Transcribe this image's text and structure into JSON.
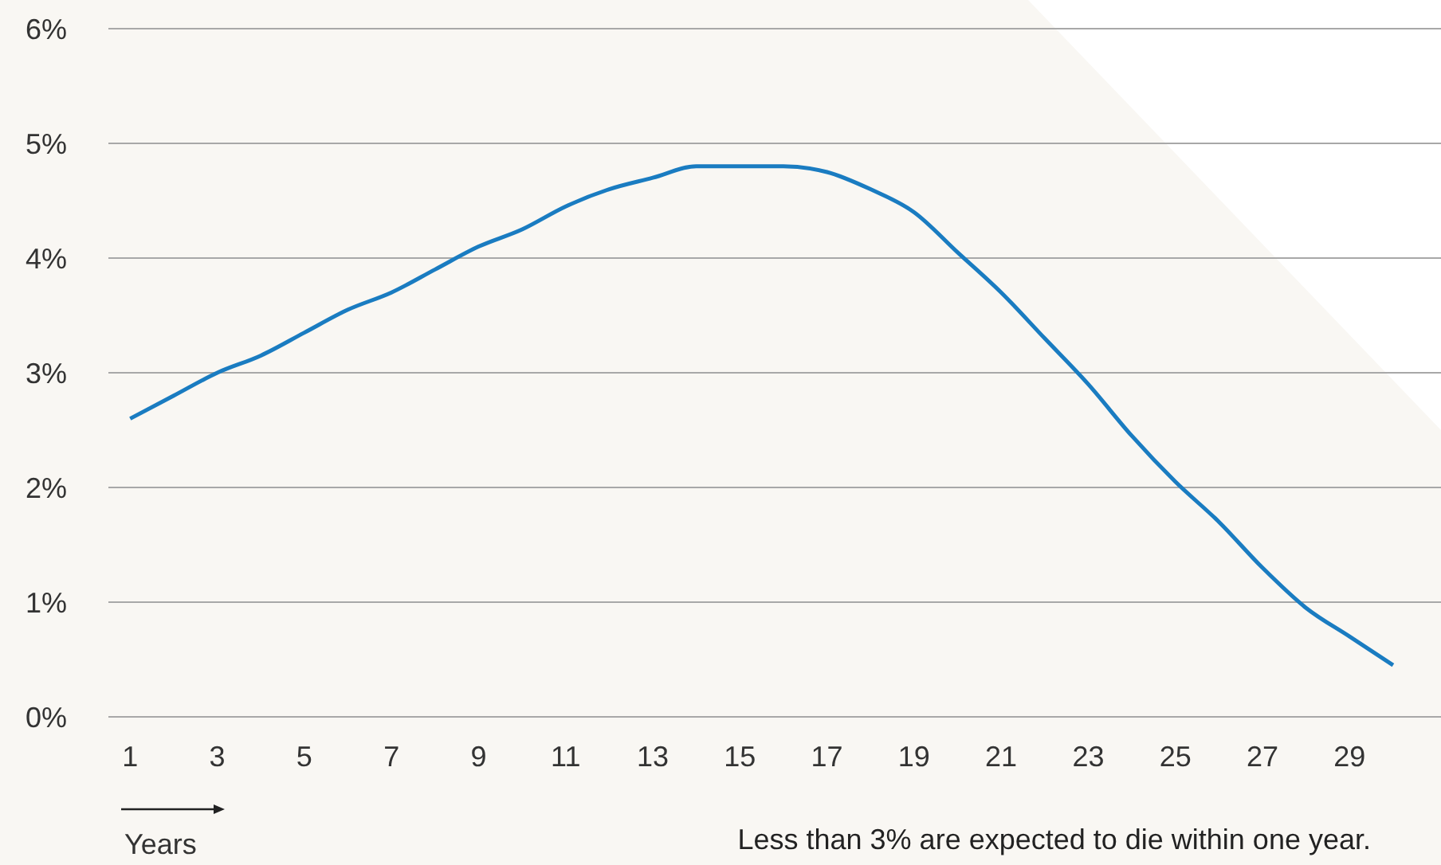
{
  "chart_data": {
    "type": "line",
    "xlabel": "Years",
    "annotations": [
      "Less than 3% are expected to die within one year."
    ],
    "x": [
      1,
      2,
      3,
      4,
      5,
      6,
      7,
      8,
      9,
      10,
      11,
      12,
      13,
      14,
      15,
      16,
      17,
      18,
      19,
      20,
      21,
      22,
      23,
      24,
      25,
      26,
      27,
      28,
      29,
      30
    ],
    "series": [
      {
        "color": "#1a7cc1",
        "values": [
          2.6,
          2.8,
          3.0,
          3.15,
          3.35,
          3.55,
          3.7,
          3.9,
          4.1,
          4.25,
          4.45,
          4.6,
          4.7,
          4.8,
          4.8,
          4.8,
          4.75,
          4.6,
          4.4,
          4.05,
          3.7,
          3.3,
          2.9,
          2.45,
          2.05,
          1.7,
          1.3,
          0.95,
          0.7,
          0.45
        ]
      }
    ],
    "xlim": [
      0.5,
      31.1
    ],
    "xticks": [
      1,
      3,
      5,
      7,
      9,
      11,
      13,
      15,
      17,
      19,
      21,
      23,
      25,
      27,
      29
    ],
    "ylim": [
      0,
      6
    ],
    "yticks": [
      {
        "value": 0,
        "label": "0%"
      },
      {
        "value": 1,
        "label": "1%"
      },
      {
        "value": 2,
        "label": "2%"
      },
      {
        "value": 3,
        "label": "3%"
      },
      {
        "value": 4,
        "label": "4%"
      },
      {
        "value": 5,
        "label": "5%"
      },
      {
        "value": 6,
        "label": "6%"
      }
    ],
    "grid": "y",
    "marker": "none",
    "line_style": "solid"
  }
}
